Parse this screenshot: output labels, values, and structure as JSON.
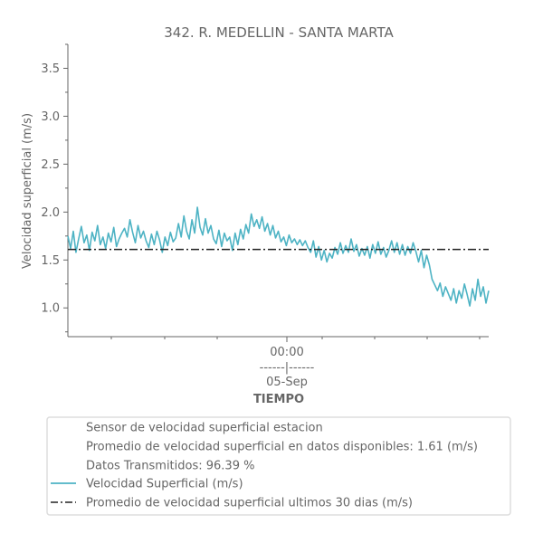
{
  "chart_data": {
    "type": "line",
    "title": "342. R. MEDELLIN - SANTA MARTA",
    "xlabel": "TIEMPO",
    "ylabel": "Velocidad superficial (m/s)",
    "ylim": [
      0.7,
      3.75
    ],
    "y_ticks": [
      "1.0",
      "1.5",
      "2.0",
      "2.5",
      "3.0",
      "3.5"
    ],
    "x_tick": {
      "line1": "00:00",
      "line2": "------|------",
      "line3": "05-Sep"
    },
    "grid": false,
    "series": [
      {
        "name": "Velocidad Superficial (m/s)",
        "color": "#4db3c4",
        "style": "solid",
        "points": [
          [
            0,
            1.75
          ],
          [
            1,
            1.62
          ],
          [
            2,
            1.8
          ],
          [
            3,
            1.58
          ],
          [
            4,
            1.72
          ],
          [
            5,
            1.85
          ],
          [
            6,
            1.68
          ],
          [
            7,
            1.76
          ],
          [
            8,
            1.6
          ],
          [
            9,
            1.79
          ],
          [
            10,
            1.7
          ],
          [
            11,
            1.86
          ],
          [
            12,
            1.66
          ],
          [
            13,
            1.74
          ],
          [
            14,
            1.62
          ],
          [
            15,
            1.78
          ],
          [
            16,
            1.69
          ],
          [
            17,
            1.84
          ],
          [
            18,
            1.64
          ],
          [
            19,
            1.72
          ],
          [
            20,
            1.78
          ],
          [
            21,
            1.83
          ],
          [
            22,
            1.74
          ],
          [
            23,
            1.92
          ],
          [
            24,
            1.79
          ],
          [
            25,
            1.68
          ],
          [
            26,
            1.86
          ],
          [
            27,
            1.73
          ],
          [
            28,
            1.8
          ],
          [
            29,
            1.7
          ],
          [
            30,
            1.63
          ],
          [
            31,
            1.77
          ],
          [
            32,
            1.66
          ],
          [
            33,
            1.8
          ],
          [
            34,
            1.71
          ],
          [
            35,
            1.58
          ],
          [
            36,
            1.74
          ],
          [
            37,
            1.65
          ],
          [
            38,
            1.79
          ],
          [
            39,
            1.69
          ],
          [
            40,
            1.73
          ],
          [
            41,
            1.88
          ],
          [
            42,
            1.74
          ],
          [
            43,
            1.96
          ],
          [
            44,
            1.8
          ],
          [
            45,
            1.72
          ],
          [
            46,
            1.92
          ],
          [
            47,
            1.78
          ],
          [
            48,
            2.05
          ],
          [
            49,
            1.84
          ],
          [
            50,
            1.76
          ],
          [
            51,
            1.93
          ],
          [
            52,
            1.78
          ],
          [
            53,
            1.86
          ],
          [
            54,
            1.72
          ],
          [
            55,
            1.67
          ],
          [
            56,
            1.81
          ],
          [
            57,
            1.64
          ],
          [
            58,
            1.78
          ],
          [
            59,
            1.7
          ],
          [
            60,
            1.74
          ],
          [
            61,
            1.6
          ],
          [
            62,
            1.78
          ],
          [
            63,
            1.66
          ],
          [
            64,
            1.82
          ],
          [
            65,
            1.72
          ],
          [
            66,
            1.87
          ],
          [
            67,
            1.78
          ],
          [
            68,
            1.98
          ],
          [
            69,
            1.85
          ],
          [
            70,
            1.92
          ],
          [
            71,
            1.83
          ],
          [
            72,
            1.95
          ],
          [
            73,
            1.8
          ],
          [
            74,
            1.88
          ],
          [
            75,
            1.76
          ],
          [
            76,
            1.86
          ],
          [
            77,
            1.73
          ],
          [
            78,
            1.8
          ],
          [
            79,
            1.69
          ],
          [
            80,
            1.74
          ],
          [
            81,
            1.65
          ],
          [
            82,
            1.76
          ],
          [
            83,
            1.68
          ],
          [
            84,
            1.72
          ],
          [
            85,
            1.66
          ],
          [
            86,
            1.71
          ],
          [
            87,
            1.65
          ],
          [
            88,
            1.7
          ],
          [
            89,
            1.63
          ],
          [
            90,
            1.58
          ],
          [
            91,
            1.7
          ],
          [
            92,
            1.53
          ],
          [
            93,
            1.64
          ],
          [
            94,
            1.5
          ],
          [
            95,
            1.6
          ],
          [
            96,
            1.48
          ],
          [
            97,
            1.57
          ],
          [
            98,
            1.52
          ],
          [
            99,
            1.63
          ],
          [
            100,
            1.56
          ],
          [
            101,
            1.68
          ],
          [
            102,
            1.57
          ],
          [
            103,
            1.65
          ],
          [
            104,
            1.58
          ],
          [
            105,
            1.72
          ],
          [
            106,
            1.59
          ],
          [
            107,
            1.66
          ],
          [
            108,
            1.54
          ],
          [
            109,
            1.62
          ],
          [
            110,
            1.55
          ],
          [
            111,
            1.64
          ],
          [
            112,
            1.52
          ],
          [
            113,
            1.66
          ],
          [
            114,
            1.57
          ],
          [
            115,
            1.69
          ],
          [
            116,
            1.56
          ],
          [
            117,
            1.63
          ],
          [
            118,
            1.53
          ],
          [
            119,
            1.6
          ],
          [
            120,
            1.7
          ],
          [
            121,
            1.58
          ],
          [
            122,
            1.68
          ],
          [
            123,
            1.56
          ],
          [
            124,
            1.66
          ],
          [
            125,
            1.55
          ],
          [
            126,
            1.64
          ],
          [
            127,
            1.57
          ],
          [
            128,
            1.68
          ],
          [
            129,
            1.59
          ],
          [
            130,
            1.48
          ],
          [
            131,
            1.6
          ],
          [
            132,
            1.42
          ],
          [
            133,
            1.55
          ],
          [
            134,
            1.45
          ],
          [
            135,
            1.3
          ],
          [
            136,
            1.24
          ],
          [
            137,
            1.18
          ],
          [
            138,
            1.26
          ],
          [
            139,
            1.12
          ],
          [
            140,
            1.22
          ],
          [
            141,
            1.15
          ],
          [
            142,
            1.08
          ],
          [
            143,
            1.2
          ],
          [
            144,
            1.05
          ],
          [
            145,
            1.18
          ],
          [
            146,
            1.1
          ],
          [
            147,
            1.25
          ],
          [
            148,
            1.14
          ],
          [
            149,
            1.02
          ],
          [
            150,
            1.2
          ],
          [
            151,
            1.08
          ],
          [
            152,
            1.3
          ],
          [
            153,
            1.12
          ],
          [
            154,
            1.22
          ],
          [
            155,
            1.05
          ],
          [
            156,
            1.18
          ]
        ]
      },
      {
        "name": "Promedio de velocidad superficial ultimos 30 dias (m/s)",
        "color": "#222222",
        "style": "dash-dot",
        "value": 1.61
      }
    ],
    "legend": {
      "placement": "bottom",
      "items": [
        {
          "label": "Sensor de velocidad superficial estacion",
          "marker": "none"
        },
        {
          "label": "Promedio de velocidad superficial en datos disponibles: 1.61 (m/s)",
          "marker": "none"
        },
        {
          "label": "Datos Transmitidos: 96.39 %",
          "marker": "none"
        },
        {
          "label": "Velocidad Superficial (m/s)",
          "marker": "solid"
        },
        {
          "label": "Promedio de velocidad superficial ultimos 30 dias (m/s)",
          "marker": "dash-dot"
        }
      ]
    }
  }
}
